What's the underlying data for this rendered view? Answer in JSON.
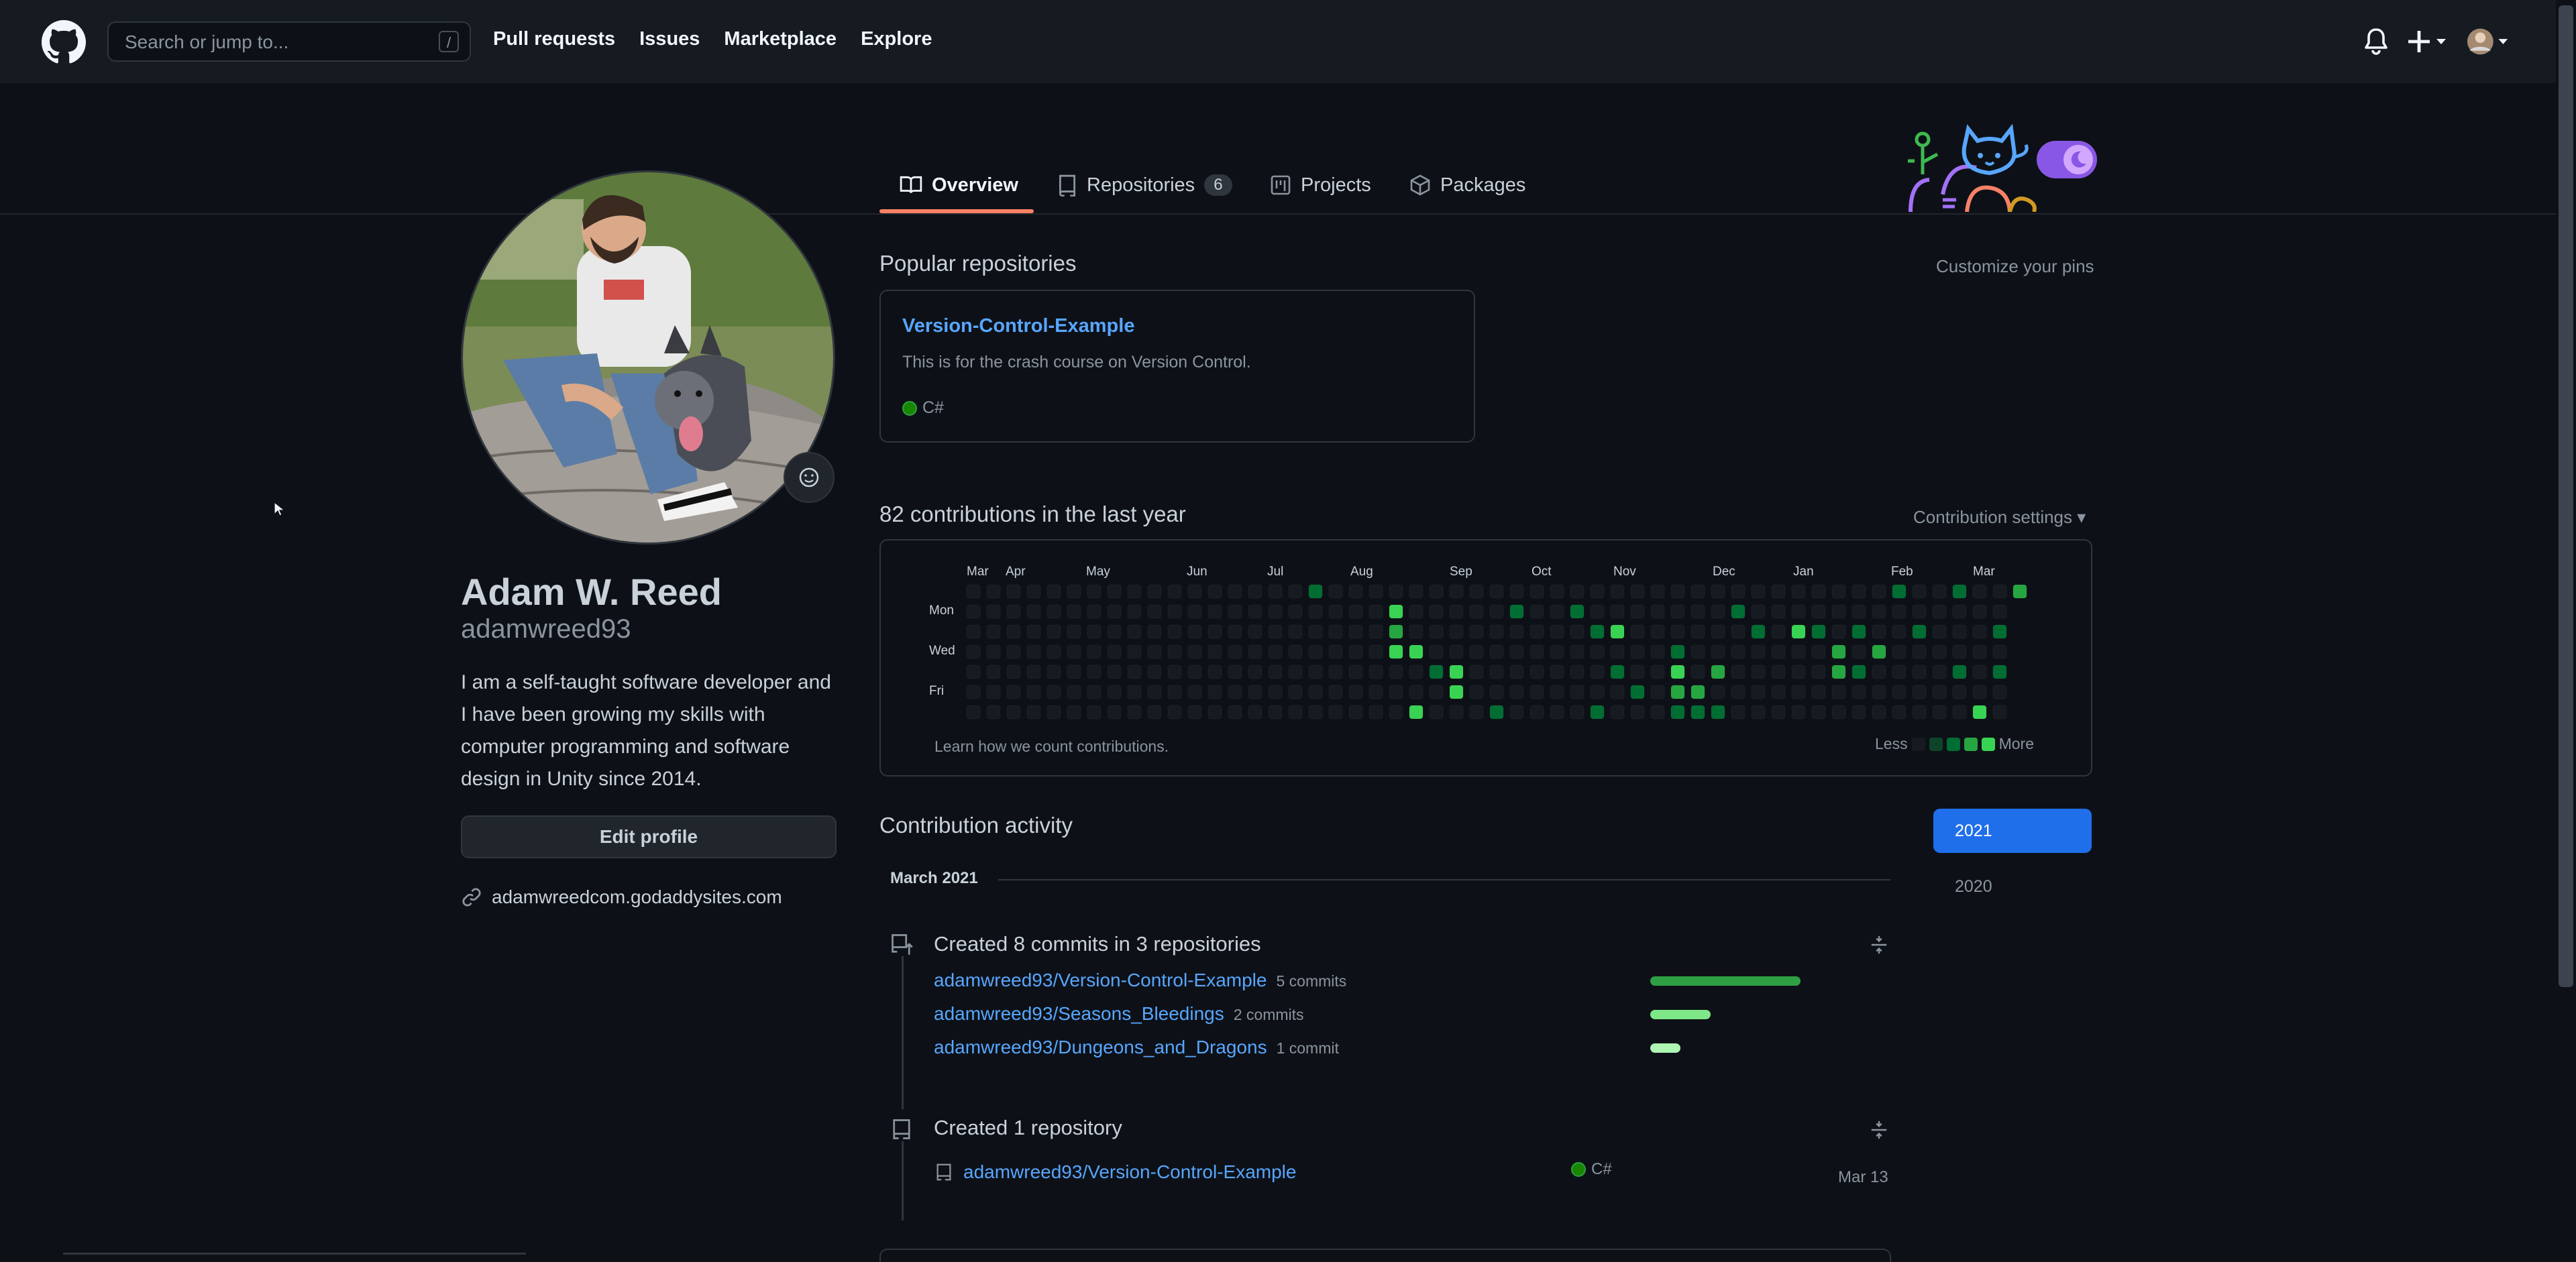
{
  "header": {
    "search_placeholder": "Search or jump to...",
    "search_shortcut": "/",
    "nav": [
      "Pull requests",
      "Issues",
      "Marketplace",
      "Explore"
    ]
  },
  "tabs": [
    {
      "label": "Overview",
      "icon": "book-icon"
    },
    {
      "label": "Repositories",
      "count": "6",
      "icon": "repo-icon"
    },
    {
      "label": "Projects",
      "icon": "project-icon"
    },
    {
      "label": "Packages",
      "icon": "package-icon"
    }
  ],
  "profile": {
    "name": "Adam W. Reed",
    "username": "adamwreed93",
    "bio": "I am a self-taught software developer and I have been growing my skills with computer programming and software design in Unity since 2014.",
    "edit_label": "Edit profile",
    "website": "adamwreedcom.godaddysites.com"
  },
  "popular": {
    "title": "Popular repositories",
    "customize": "Customize your pins",
    "repo": {
      "name": "Version-Control-Example",
      "description": "This is for the crash course on Version Control.",
      "language": "C#"
    }
  },
  "contributions": {
    "title": "82 contributions in the last year",
    "settings": "Contribution settings ▾",
    "months": [
      "Mar",
      "Apr",
      "May",
      "Jun",
      "Jul",
      "Aug",
      "Sep",
      "Oct",
      "Nov",
      "Dec",
      "Jan",
      "Feb",
      "Mar"
    ],
    "days": [
      "Mon",
      "Wed",
      "Fri"
    ],
    "learn": "Learn how we count contributions.",
    "less": "Less",
    "more": "More"
  },
  "activity": {
    "title": "Contribution activity",
    "years": [
      "2021",
      "2020"
    ],
    "month": "March 2021",
    "commits_title": "Created 8 commits in 3 repositories",
    "commit_repos": [
      {
        "name": "adamwreed93/Version-Control-Example",
        "commits": "5 commits",
        "count": 5
      },
      {
        "name": "adamwreed93/Seasons_Bleedings",
        "commits": "2 commits",
        "count": 2
      },
      {
        "name": "adamwreed93/Dungeons_and_Dragons",
        "commits": "1 commit",
        "count": 1
      }
    ],
    "repo_title": "Created 1 repository",
    "created_repo": {
      "name": "adamwreed93/Version-Control-Example",
      "language": "C#",
      "date": "Mar 13"
    }
  },
  "colors": {
    "accent": "#58a6ff",
    "tab_underline": "#f78166",
    "green_levels": [
      "#161b22",
      "#0e4429",
      "#006d32",
      "#26a641",
      "#39d353"
    ]
  }
}
